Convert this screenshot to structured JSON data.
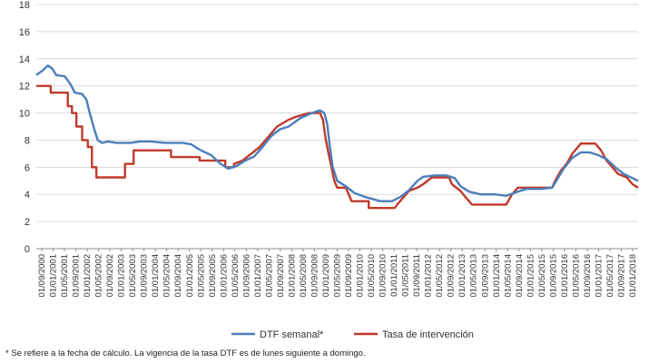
{
  "chart_data": {
    "type": "line",
    "title": "",
    "xlabel": "",
    "ylabel": "",
    "ylim": [
      0,
      18
    ],
    "yticks": [
      0,
      2,
      4,
      6,
      8,
      10,
      12,
      14,
      16,
      18
    ],
    "xlim": [
      "2000-09-01",
      "2018-03-01"
    ],
    "grid": "horizontal",
    "legend_position": "bottom",
    "xtick_labels": [
      "01/09/2000",
      "01/01/2001",
      "01/05/2001",
      "01/09/2001",
      "01/01/2002",
      "01/05/2002",
      "01/09/2002",
      "01/01/2003",
      "01/05/2003",
      "01/09/2003",
      "01/01/2004",
      "01/05/2004",
      "01/09/2004",
      "01/01/2005",
      "01/05/2005",
      "01/09/2005",
      "01/01/2006",
      "01/05/2006",
      "01/09/2006",
      "01/01/2007",
      "01/05/2007",
      "01/09/2007",
      "01/01/2008",
      "01/05/2008",
      "01/09/2008",
      "01/01/2009",
      "01/05/2009",
      "01/09/2009",
      "01/01/2010",
      "01/05/2010",
      "01/09/2010",
      "01/01/2011",
      "01/05/2011",
      "01/09/2011",
      "01/01/2012",
      "01/05/2012",
      "01/09/2012",
      "01/01/2013",
      "01/05/2013",
      "01/09/2013",
      "01/01/2014",
      "01/05/2014",
      "01/09/2014",
      "01/01/2015",
      "01/05/2015",
      "01/09/2015",
      "01/01/2016",
      "01/05/2016",
      "01/09/2016",
      "01/01/2017",
      "01/05/2017",
      "01/09/2017",
      "01/01/2018"
    ],
    "series": [
      {
        "name": "DTF semanal*",
        "color": "#4a7ebb",
        "points": [
          [
            "2000-09-01",
            12.8
          ],
          [
            "2000-11-01",
            13.1
          ],
          [
            "2001-01-01",
            13.5
          ],
          [
            "2001-02-15",
            13.3
          ],
          [
            "2001-04-01",
            12.8
          ],
          [
            "2001-07-01",
            12.7
          ],
          [
            "2001-09-01",
            12.1
          ],
          [
            "2001-10-15",
            11.5
          ],
          [
            "2002-01-01",
            11.4
          ],
          [
            "2002-02-15",
            11.0
          ],
          [
            "2002-03-15",
            10.2
          ],
          [
            "2002-05-01",
            9.0
          ],
          [
            "2002-06-15",
            8.0
          ],
          [
            "2002-08-01",
            7.8
          ],
          [
            "2002-10-01",
            7.9
          ],
          [
            "2003-01-01",
            7.8
          ],
          [
            "2003-06-01",
            7.8
          ],
          [
            "2003-09-01",
            7.9
          ],
          [
            "2004-01-01",
            7.9
          ],
          [
            "2004-06-01",
            7.8
          ],
          [
            "2004-12-01",
            7.8
          ],
          [
            "2005-03-01",
            7.7
          ],
          [
            "2005-06-01",
            7.3
          ],
          [
            "2005-10-01",
            6.9
          ],
          [
            "2006-01-01",
            6.3
          ],
          [
            "2006-04-01",
            5.9
          ],
          [
            "2006-07-01",
            6.1
          ],
          [
            "2006-10-01",
            6.5
          ],
          [
            "2007-01-01",
            6.8
          ],
          [
            "2007-04-01",
            7.5
          ],
          [
            "2007-07-01",
            8.3
          ],
          [
            "2007-10-01",
            8.8
          ],
          [
            "2008-01-01",
            9.0
          ],
          [
            "2008-05-01",
            9.6
          ],
          [
            "2008-09-01",
            10.0
          ],
          [
            "2008-12-01",
            10.2
          ],
          [
            "2009-01-15",
            10.0
          ],
          [
            "2009-02-15",
            9.2
          ],
          [
            "2009-03-15",
            7.5
          ],
          [
            "2009-04-15",
            6.0
          ],
          [
            "2009-06-01",
            5.0
          ],
          [
            "2009-09-01",
            4.6
          ],
          [
            "2009-12-01",
            4.1
          ],
          [
            "2010-04-01",
            3.8
          ],
          [
            "2010-09-01",
            3.5
          ],
          [
            "2011-01-01",
            3.5
          ],
          [
            "2011-04-01",
            3.8
          ],
          [
            "2011-07-01",
            4.3
          ],
          [
            "2011-10-01",
            5.0
          ],
          [
            "2011-12-01",
            5.3
          ],
          [
            "2012-04-01",
            5.4
          ],
          [
            "2012-08-01",
            5.4
          ],
          [
            "2012-11-01",
            5.2
          ],
          [
            "2013-01-01",
            4.6
          ],
          [
            "2013-04-01",
            4.2
          ],
          [
            "2013-08-01",
            4.0
          ],
          [
            "2014-01-01",
            4.0
          ],
          [
            "2014-05-01",
            3.9
          ],
          [
            "2014-09-01",
            4.2
          ],
          [
            "2014-12-01",
            4.4
          ],
          [
            "2015-05-01",
            4.4
          ],
          [
            "2015-09-01",
            4.5
          ],
          [
            "2015-11-01",
            5.2
          ],
          [
            "2016-01-01",
            5.9
          ],
          [
            "2016-04-01",
            6.7
          ],
          [
            "2016-07-01",
            7.1
          ],
          [
            "2016-10-01",
            7.1
          ],
          [
            "2017-01-01",
            6.9
          ],
          [
            "2017-04-01",
            6.6
          ],
          [
            "2017-07-01",
            6.0
          ],
          [
            "2017-10-01",
            5.5
          ],
          [
            "2018-01-01",
            5.2
          ],
          [
            "2018-03-01",
            5.0
          ]
        ]
      },
      {
        "name": "Tasa de intervención",
        "color": "#c0392b",
        "points": [
          [
            "2000-09-01",
            12.0
          ],
          [
            "2001-02-01",
            12.0
          ],
          [
            "2001-02-01",
            11.5
          ],
          [
            "2001-08-01",
            11.5
          ],
          [
            "2001-08-01",
            10.5
          ],
          [
            "2001-09-15",
            10.5
          ],
          [
            "2001-09-15",
            10.0
          ],
          [
            "2001-11-01",
            10.0
          ],
          [
            "2001-11-01",
            9.0
          ],
          [
            "2002-01-01",
            9.0
          ],
          [
            "2002-01-01",
            8.0
          ],
          [
            "2002-03-01",
            8.0
          ],
          [
            "2002-03-01",
            7.5
          ],
          [
            "2002-04-15",
            7.5
          ],
          [
            "2002-04-15",
            6.0
          ],
          [
            "2002-06-01",
            6.0
          ],
          [
            "2002-06-01",
            5.25
          ],
          [
            "2003-04-01",
            5.25
          ],
          [
            "2003-04-01",
            6.25
          ],
          [
            "2003-07-01",
            6.25
          ],
          [
            "2003-07-01",
            7.25
          ],
          [
            "2004-08-01",
            7.25
          ],
          [
            "2004-08-01",
            6.75
          ],
          [
            "2005-06-01",
            6.75
          ],
          [
            "2005-06-01",
            6.5
          ],
          [
            "2006-03-01",
            6.5
          ],
          [
            "2006-03-01",
            6.0
          ],
          [
            "2006-06-01",
            6.0
          ],
          [
            "2006-06-01",
            6.25
          ],
          [
            "2006-09-01",
            6.5
          ],
          [
            "2006-12-01",
            7.0
          ],
          [
            "2007-03-01",
            7.5
          ],
          [
            "2007-06-01",
            8.25
          ],
          [
            "2007-09-01",
            9.0
          ],
          [
            "2008-01-01",
            9.5
          ],
          [
            "2008-04-01",
            9.75
          ],
          [
            "2008-08-01",
            10.0
          ],
          [
            "2008-12-01",
            10.0
          ],
          [
            "2009-01-01",
            9.5
          ],
          [
            "2009-02-01",
            8.0
          ],
          [
            "2009-03-01",
            7.0
          ],
          [
            "2009-04-01",
            6.0
          ],
          [
            "2009-05-01",
            5.0
          ],
          [
            "2009-06-01",
            4.5
          ],
          [
            "2009-09-01",
            4.5
          ],
          [
            "2009-11-01",
            3.5
          ],
          [
            "2010-05-01",
            3.5
          ],
          [
            "2010-05-01",
            3.0
          ],
          [
            "2011-02-01",
            3.0
          ],
          [
            "2011-03-01",
            3.25
          ],
          [
            "2011-05-01",
            3.75
          ],
          [
            "2011-07-01",
            4.25
          ],
          [
            "2011-10-01",
            4.5
          ],
          [
            "2011-12-01",
            4.75
          ],
          [
            "2012-03-01",
            5.25
          ],
          [
            "2012-09-01",
            5.25
          ],
          [
            "2012-10-01",
            4.75
          ],
          [
            "2013-01-01",
            4.25
          ],
          [
            "2013-03-01",
            3.75
          ],
          [
            "2013-05-01",
            3.25
          ],
          [
            "2014-05-01",
            3.25
          ],
          [
            "2014-07-01",
            4.0
          ],
          [
            "2014-09-01",
            4.5
          ],
          [
            "2015-09-01",
            4.5
          ],
          [
            "2015-10-01",
            5.0
          ],
          [
            "2015-12-01",
            5.75
          ],
          [
            "2016-02-01",
            6.25
          ],
          [
            "2016-04-01",
            7.0
          ],
          [
            "2016-07-01",
            7.75
          ],
          [
            "2016-12-01",
            7.75
          ],
          [
            "2017-02-01",
            7.25
          ],
          [
            "2017-04-01",
            6.5
          ],
          [
            "2017-06-01",
            6.0
          ],
          [
            "2017-08-01",
            5.5
          ],
          [
            "2017-11-01",
            5.25
          ],
          [
            "2018-01-01",
            4.75
          ],
          [
            "2018-03-01",
            4.5
          ]
        ]
      }
    ]
  },
  "footnote": "* Se refiere a la fecha de cálculo. La vigencia de la tasa DTF es de lunes siguiente a domingo."
}
